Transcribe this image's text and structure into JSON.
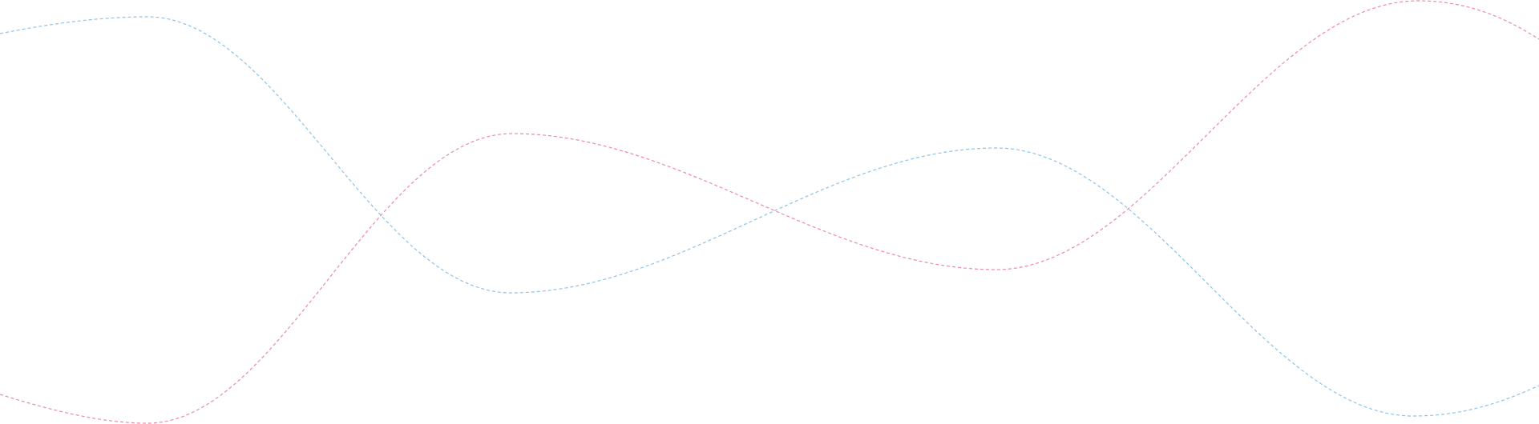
{
  "decoration": {
    "waves": [
      {
        "name": "blue-wave",
        "color": "#8ec3e3",
        "style": "dashed"
      },
      {
        "name": "pink-wave",
        "color": "#e98aaa",
        "style": "dashed"
      }
    ],
    "background": "#ffffff"
  }
}
